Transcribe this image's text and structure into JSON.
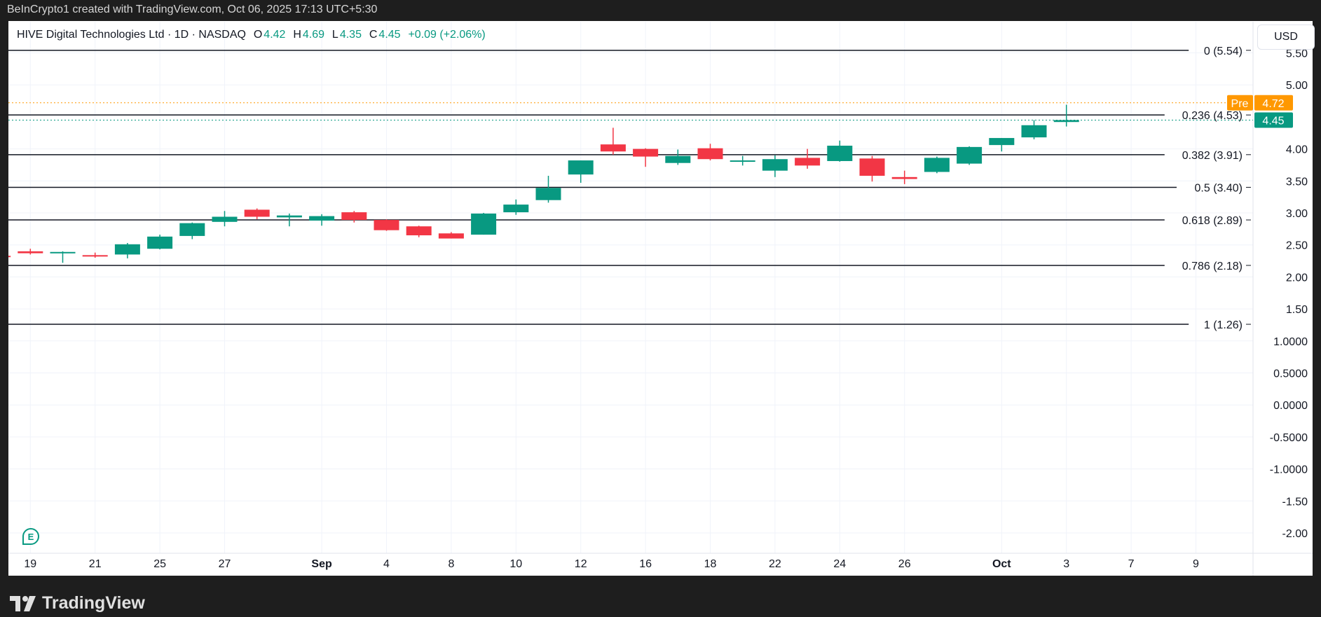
{
  "header": {
    "credit": "BeInCrypto1 created with TradingView.com, Oct 06, 2025 17:13 UTC+5:30"
  },
  "legend": {
    "symbol": "HIVE Digital Technologies Ltd · 1D · NASDAQ",
    "o_label": "O",
    "o": "4.42",
    "h_label": "H",
    "h": "4.69",
    "l_label": "L",
    "l": "4.35",
    "c_label": "C",
    "c": "4.45",
    "change": "+0.09 (+2.06%)"
  },
  "currency": "USD",
  "earnings_marker": "E",
  "brand": "TradingView",
  "colors": {
    "up": "#089981",
    "down": "#f23645",
    "pre": "#ff9800",
    "grid": "#f0f3fa",
    "fib": "#131722"
  },
  "chart_data": {
    "type": "candlestick",
    "title": "HIVE Digital Technologies Ltd · 1D · NASDAQ",
    "ylim": [
      -2.25,
      5.65
    ],
    "y_ticks": [
      "5.50",
      "5.00",
      "4.00",
      "3.50",
      "3.00",
      "2.50",
      "2.00",
      "1.50",
      "1.0000",
      "0.5000",
      "0.0000",
      "-0.5000",
      "-1.0000",
      "-1.50",
      "-2.00"
    ],
    "x_ticks": [
      {
        "label": "19",
        "bar": 1
      },
      {
        "label": "21",
        "bar": 3
      },
      {
        "label": "25",
        "bar": 5
      },
      {
        "label": "27",
        "bar": 7
      },
      {
        "label": "Sep",
        "bar": 10,
        "bold": true
      },
      {
        "label": "4",
        "bar": 12
      },
      {
        "label": "8",
        "bar": 14
      },
      {
        "label": "10",
        "bar": 16
      },
      {
        "label": "12",
        "bar": 18
      },
      {
        "label": "16",
        "bar": 20
      },
      {
        "label": "18",
        "bar": 22
      },
      {
        "label": "22",
        "bar": 24
      },
      {
        "label": "24",
        "bar": 26
      },
      {
        "label": "26",
        "bar": 28
      },
      {
        "label": "Oct",
        "bar": 31,
        "bold": true
      },
      {
        "label": "3",
        "bar": 33
      },
      {
        "label": "7",
        "bar": 35
      },
      {
        "label": "9",
        "bar": 37
      }
    ],
    "candles": [
      [
        2.33,
        2.38,
        2.39,
        2.32
      ],
      [
        2.4,
        2.44,
        2.35,
        2.37
      ],
      [
        2.37,
        2.4,
        2.22,
        2.39
      ],
      [
        2.34,
        2.38,
        2.3,
        2.32
      ],
      [
        2.35,
        2.53,
        2.29,
        2.51
      ],
      [
        2.44,
        2.66,
        2.43,
        2.63
      ],
      [
        2.64,
        2.85,
        2.59,
        2.84
      ],
      [
        2.86,
        3.03,
        2.79,
        2.94
      ],
      [
        3.05,
        3.07,
        2.9,
        2.94
      ],
      [
        2.93,
        2.99,
        2.79,
        2.96
      ],
      [
        2.88,
        2.98,
        2.8,
        2.95
      ],
      [
        3.01,
        3.03,
        2.85,
        2.89
      ],
      [
        2.89,
        2.9,
        2.72,
        2.73
      ],
      [
        2.79,
        2.8,
        2.62,
        2.65
      ],
      [
        2.68,
        2.7,
        2.6,
        2.6
      ],
      [
        2.66,
        3.0,
        2.66,
        2.99
      ],
      [
        3.01,
        3.21,
        2.97,
        3.13
      ],
      [
        3.2,
        3.58,
        3.16,
        3.39
      ],
      [
        3.6,
        3.82,
        3.47,
        3.82
      ],
      [
        4.07,
        4.33,
        3.91,
        3.96
      ],
      [
        4.0,
        4.01,
        3.72,
        3.88
      ],
      [
        3.78,
        3.99,
        3.75,
        3.89
      ],
      [
        4.01,
        4.08,
        3.82,
        3.84
      ],
      [
        3.8,
        3.89,
        3.74,
        3.82
      ],
      [
        3.66,
        3.9,
        3.56,
        3.84
      ],
      [
        3.86,
        4.0,
        3.69,
        3.74
      ],
      [
        3.81,
        4.13,
        3.8,
        4.05
      ],
      [
        3.85,
        3.89,
        3.49,
        3.58
      ],
      [
        3.56,
        3.66,
        3.45,
        3.53
      ],
      [
        3.64,
        3.88,
        3.62,
        3.86
      ],
      [
        3.77,
        4.04,
        3.75,
        4.03
      ],
      [
        4.06,
        4.17,
        3.96,
        4.17
      ],
      [
        4.18,
        4.45,
        4.15,
        4.37
      ],
      [
        4.42,
        4.69,
        4.35,
        4.45
      ]
    ],
    "candle_format": "open, high, low, close",
    "fib_levels": [
      {
        "label": "0 (5.54)",
        "price": 5.54
      },
      {
        "label": "0.236 (4.53)",
        "price": 4.53
      },
      {
        "label": "0.382 (3.91)",
        "price": 3.91
      },
      {
        "label": "0.5 (3.40)",
        "price": 3.4
      },
      {
        "label": "0.618 (2.89)",
        "price": 2.89
      },
      {
        "label": "0.786 (2.18)",
        "price": 2.18
      },
      {
        "label": "1 (1.26)",
        "price": 1.26
      }
    ],
    "premarket": {
      "label": "Pre",
      "price": 4.72,
      "text": "4.72"
    },
    "last": {
      "price": 4.45,
      "text": "4.45"
    }
  }
}
